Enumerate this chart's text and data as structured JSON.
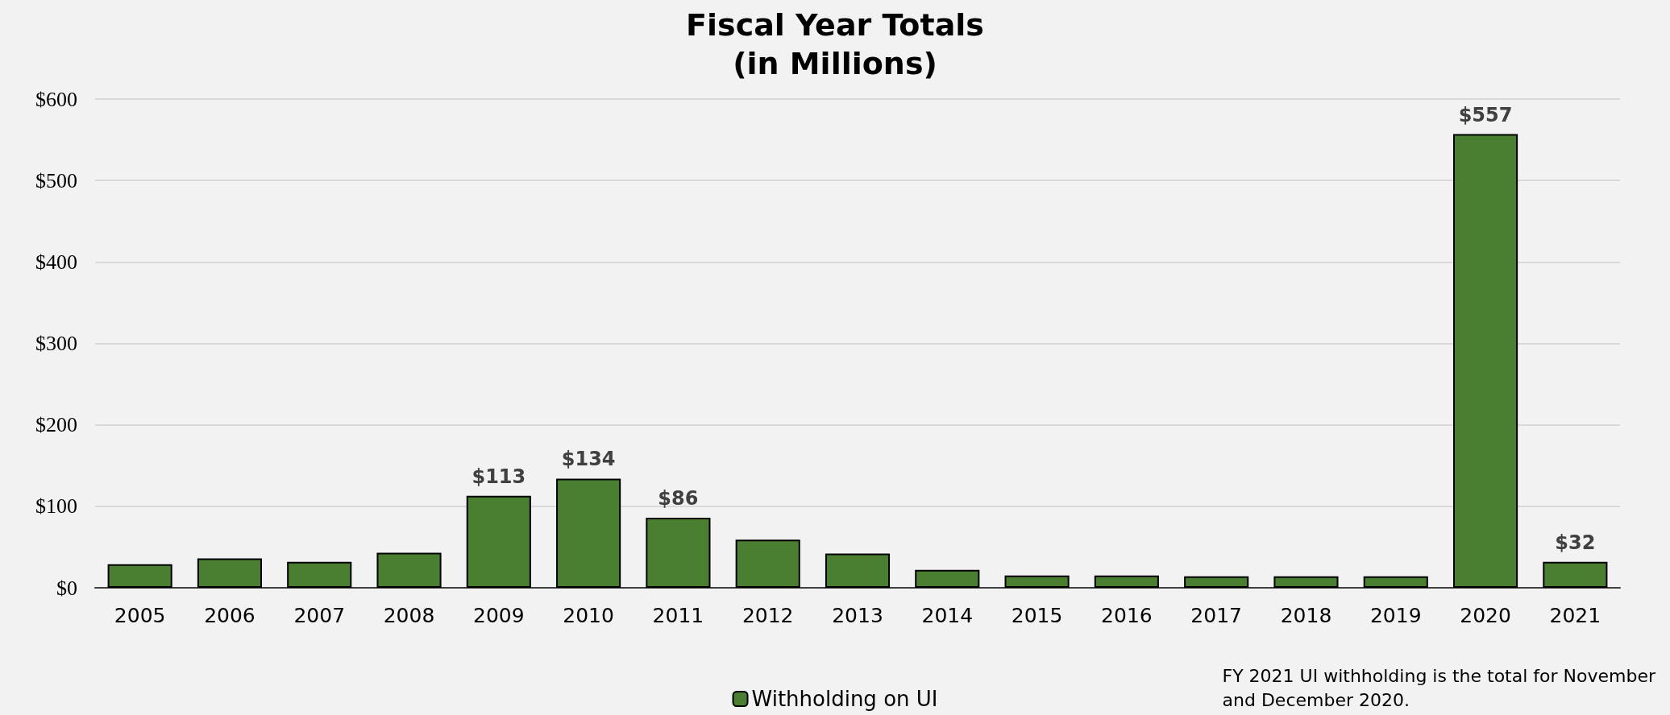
{
  "chart_data": {
    "type": "bar",
    "title": "Fiscal Year Totals\n(in Millions)",
    "categories": [
      "2005",
      "2006",
      "2007",
      "2008",
      "2009",
      "2010",
      "2011",
      "2012",
      "2013",
      "2014",
      "2015",
      "2016",
      "2017",
      "2018",
      "2019",
      "2020",
      "2021"
    ],
    "series": [
      {
        "name": "Withholding on UI",
        "color": "#4a7f32",
        "values": [
          29,
          36,
          32,
          43,
          113,
          134,
          86,
          59,
          42,
          22,
          15,
          15,
          14,
          14,
          14,
          557,
          32
        ],
        "value_labels": [
          null,
          null,
          null,
          null,
          "$113",
          "$134",
          "$86",
          null,
          null,
          null,
          null,
          null,
          null,
          null,
          null,
          "$557",
          "$32"
        ]
      }
    ],
    "ylim": [
      0,
      600
    ],
    "yticks": [
      {
        "value": 0,
        "label": "$0"
      },
      {
        "value": 100,
        "label": "$100"
      },
      {
        "value": 200,
        "label": "$200"
      },
      {
        "value": 300,
        "label": "$300"
      },
      {
        "value": 400,
        "label": "$400"
      },
      {
        "value": 500,
        "label": "$500"
      },
      {
        "value": 600,
        "label": "$600"
      }
    ],
    "grid": "y",
    "legend": "bottom",
    "annotations": [
      "FY 2021 UI withholding is the total for November\nand December 2020."
    ]
  }
}
